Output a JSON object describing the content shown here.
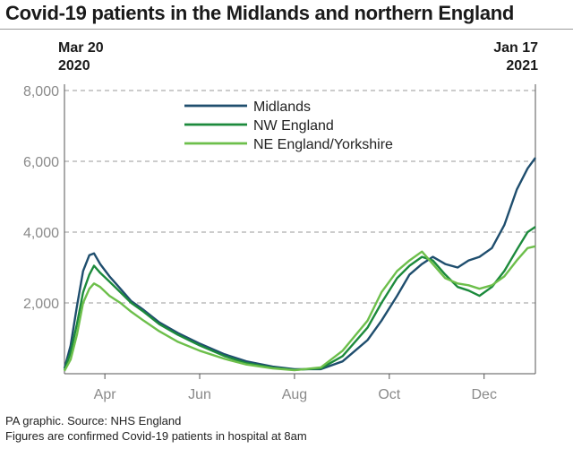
{
  "title": "Covid-19 patients in the Midlands and northern England",
  "footer": {
    "source": "PA graphic. Source: NHS England",
    "note": "Figures are confirmed Covid-19 patients in hospital at 8am"
  },
  "colors": {
    "midlands": "#1f4e6e",
    "nw_england": "#1c8a3c",
    "ne_england_yorkshire": "#6dbf4b",
    "grid": "#9a9a9a",
    "axis_text": "#8a8a8a"
  },
  "chart_data": {
    "type": "line",
    "title": "Covid-19 patients in the Midlands and northern England",
    "start_label": [
      "Mar 20",
      "2020"
    ],
    "end_label": [
      "Jan 17",
      "2021"
    ],
    "x_range": [
      "2020-03-20",
      "2021-01-17"
    ],
    "x_ticks": [
      {
        "date": "2020-04-15",
        "label": "Apr"
      },
      {
        "date": "2020-06-15",
        "label": "Jun"
      },
      {
        "date": "2020-08-15",
        "label": "Aug"
      },
      {
        "date": "2020-10-15",
        "label": "Oct"
      },
      {
        "date": "2020-12-15",
        "label": "Dec"
      }
    ],
    "y_ticks": [
      {
        "value": 2000,
        "label": "2,000"
      },
      {
        "value": 4000,
        "label": "4,000"
      },
      {
        "value": 6000,
        "label": "6,000"
      },
      {
        "value": 8000,
        "label": "8,000"
      }
    ],
    "ylim": [
      0,
      8000
    ],
    "grid": true,
    "legend_position": "top-center",
    "series": [
      {
        "name": "Midlands",
        "color": "#1f4e6e",
        "points": [
          [
            "2020-03-20",
            150
          ],
          [
            "2020-03-24",
            800
          ],
          [
            "2020-03-28",
            1900
          ],
          [
            "2020-04-01",
            2900
          ],
          [
            "2020-04-05",
            3350
          ],
          [
            "2020-04-08",
            3400
          ],
          [
            "2020-04-12",
            3100
          ],
          [
            "2020-04-18",
            2750
          ],
          [
            "2020-04-25",
            2400
          ],
          [
            "2020-05-02",
            2050
          ],
          [
            "2020-05-10",
            1800
          ],
          [
            "2020-05-20",
            1450
          ],
          [
            "2020-06-01",
            1150
          ],
          [
            "2020-06-15",
            850
          ],
          [
            "2020-07-01",
            550
          ],
          [
            "2020-07-15",
            350
          ],
          [
            "2020-08-01",
            200
          ],
          [
            "2020-08-15",
            130
          ],
          [
            "2020-09-01",
            130
          ],
          [
            "2020-09-15",
            350
          ],
          [
            "2020-10-01",
            950
          ],
          [
            "2020-10-10",
            1500
          ],
          [
            "2020-10-20",
            2200
          ],
          [
            "2020-10-28",
            2800
          ],
          [
            "2020-11-05",
            3100
          ],
          [
            "2020-11-12",
            3300
          ],
          [
            "2020-11-20",
            3100
          ],
          [
            "2020-11-28",
            3000
          ],
          [
            "2020-12-05",
            3200
          ],
          [
            "2020-12-12",
            3300
          ],
          [
            "2020-12-20",
            3550
          ],
          [
            "2020-12-28",
            4200
          ],
          [
            "2021-01-05",
            5200
          ],
          [
            "2021-01-12",
            5800
          ],
          [
            "2021-01-17",
            6100
          ]
        ]
      },
      {
        "name": "NW England",
        "color": "#1c8a3c",
        "points": [
          [
            "2020-03-20",
            100
          ],
          [
            "2020-03-24",
            600
          ],
          [
            "2020-03-28",
            1400
          ],
          [
            "2020-04-01",
            2300
          ],
          [
            "2020-04-05",
            2800
          ],
          [
            "2020-04-08",
            3050
          ],
          [
            "2020-04-12",
            2850
          ],
          [
            "2020-04-18",
            2600
          ],
          [
            "2020-04-25",
            2300
          ],
          [
            "2020-05-02",
            2000
          ],
          [
            "2020-05-10",
            1750
          ],
          [
            "2020-05-20",
            1400
          ],
          [
            "2020-06-01",
            1100
          ],
          [
            "2020-06-15",
            800
          ],
          [
            "2020-07-01",
            500
          ],
          [
            "2020-07-15",
            300
          ],
          [
            "2020-08-01",
            170
          ],
          [
            "2020-08-15",
            110
          ],
          [
            "2020-09-01",
            150
          ],
          [
            "2020-09-15",
            500
          ],
          [
            "2020-10-01",
            1300
          ],
          [
            "2020-10-10",
            2000
          ],
          [
            "2020-10-20",
            2700
          ],
          [
            "2020-10-28",
            3050
          ],
          [
            "2020-11-05",
            3300
          ],
          [
            "2020-11-12",
            3200
          ],
          [
            "2020-11-20",
            2800
          ],
          [
            "2020-11-28",
            2450
          ],
          [
            "2020-12-05",
            2350
          ],
          [
            "2020-12-12",
            2200
          ],
          [
            "2020-12-20",
            2450
          ],
          [
            "2020-12-28",
            2900
          ],
          [
            "2021-01-05",
            3500
          ],
          [
            "2021-01-12",
            4000
          ],
          [
            "2021-01-17",
            4150
          ]
        ]
      },
      {
        "name": "NE England/Yorkshire",
        "color": "#6dbf4b",
        "points": [
          [
            "2020-03-20",
            80
          ],
          [
            "2020-03-24",
            400
          ],
          [
            "2020-03-28",
            1100
          ],
          [
            "2020-04-01",
            2000
          ],
          [
            "2020-04-05",
            2400
          ],
          [
            "2020-04-08",
            2550
          ],
          [
            "2020-04-12",
            2450
          ],
          [
            "2020-04-18",
            2200
          ],
          [
            "2020-04-25",
            2000
          ],
          [
            "2020-05-02",
            1750
          ],
          [
            "2020-05-10",
            1500
          ],
          [
            "2020-05-20",
            1200
          ],
          [
            "2020-06-01",
            900
          ],
          [
            "2020-06-15",
            650
          ],
          [
            "2020-07-01",
            420
          ],
          [
            "2020-07-15",
            260
          ],
          [
            "2020-08-01",
            150
          ],
          [
            "2020-08-15",
            100
          ],
          [
            "2020-09-01",
            180
          ],
          [
            "2020-09-15",
            650
          ],
          [
            "2020-10-01",
            1500
          ],
          [
            "2020-10-10",
            2300
          ],
          [
            "2020-10-20",
            2900
          ],
          [
            "2020-10-28",
            3200
          ],
          [
            "2020-11-05",
            3450
          ],
          [
            "2020-11-12",
            3100
          ],
          [
            "2020-11-20",
            2700
          ],
          [
            "2020-11-28",
            2550
          ],
          [
            "2020-12-05",
            2500
          ],
          [
            "2020-12-12",
            2400
          ],
          [
            "2020-12-20",
            2500
          ],
          [
            "2020-12-28",
            2750
          ],
          [
            "2021-01-05",
            3200
          ],
          [
            "2021-01-12",
            3550
          ],
          [
            "2021-01-17",
            3600
          ]
        ]
      }
    ]
  }
}
